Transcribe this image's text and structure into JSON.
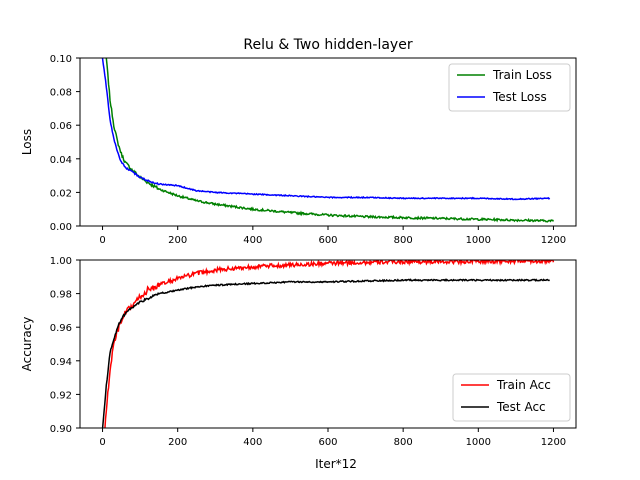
{
  "figure": {
    "title": "Relu & Two hidden-layer"
  },
  "chart_data": [
    {
      "type": "line",
      "title": "Relu & Two hidden-layer",
      "xlabel": "",
      "ylabel": "Loss",
      "xlim": [
        -60,
        1260
      ],
      "ylim": [
        0.0,
        0.1
      ],
      "xticks": [
        0,
        200,
        400,
        600,
        800,
        1000,
        1200
      ],
      "yticks": [
        0.0,
        0.02,
        0.04,
        0.06,
        0.08,
        0.1
      ],
      "ytick_labels": [
        "0.00",
        "0.02",
        "0.04",
        "0.06",
        "0.08",
        "0.10"
      ],
      "legend_position": "top-right",
      "grid": false,
      "series": [
        {
          "name": "Train Loss",
          "color": "#008000",
          "noise": 0.0006,
          "x": [
            0,
            10,
            20,
            30,
            40,
            50,
            60,
            80,
            100,
            120,
            150,
            200,
            250,
            300,
            400,
            500,
            600,
            700,
            800,
            900,
            1000,
            1100,
            1200
          ],
          "y": [
            0.13,
            0.1,
            0.075,
            0.06,
            0.05,
            0.043,
            0.038,
            0.033,
            0.029,
            0.026,
            0.022,
            0.018,
            0.015,
            0.013,
            0.01,
            0.008,
            0.0065,
            0.0055,
            0.005,
            0.0045,
            0.004,
            0.0035,
            0.003
          ]
        },
        {
          "name": "Test Loss",
          "color": "#0000ff",
          "noise": 0.0003,
          "x": [
            0,
            10,
            20,
            30,
            40,
            50,
            60,
            80,
            100,
            120,
            150,
            200,
            250,
            300,
            400,
            500,
            600,
            700,
            800,
            900,
            1000,
            1100,
            1190
          ],
          "y": [
            0.1,
            0.083,
            0.063,
            0.052,
            0.044,
            0.038,
            0.035,
            0.032,
            0.029,
            0.027,
            0.025,
            0.024,
            0.021,
            0.02,
            0.019,
            0.018,
            0.017,
            0.017,
            0.0165,
            0.0165,
            0.0165,
            0.016,
            0.0165
          ]
        }
      ]
    },
    {
      "type": "line",
      "title": "",
      "xlabel": "Iter*12",
      "ylabel": "Accuracy",
      "xlim": [
        -60,
        1260
      ],
      "ylim": [
        0.9,
        1.0
      ],
      "xticks": [
        0,
        200,
        400,
        600,
        800,
        1000,
        1200
      ],
      "yticks": [
        0.9,
        0.92,
        0.94,
        0.96,
        0.98,
        1.0
      ],
      "ytick_labels": [
        "0.90",
        "0.92",
        "0.94",
        "0.96",
        "0.98",
        "1.00"
      ],
      "legend_position": "bottom-right",
      "grid": false,
      "series": [
        {
          "name": "Train Acc",
          "color": "#ff0000",
          "noise": 0.0012,
          "x": [
            0,
            10,
            20,
            30,
            40,
            50,
            60,
            80,
            100,
            120,
            150,
            200,
            250,
            300,
            400,
            500,
            600,
            700,
            800,
            900,
            1000,
            1100,
            1200
          ],
          "y": [
            0.88,
            0.91,
            0.935,
            0.95,
            0.958,
            0.963,
            0.968,
            0.973,
            0.978,
            0.982,
            0.985,
            0.989,
            0.992,
            0.994,
            0.996,
            0.997,
            0.998,
            0.9985,
            0.999,
            0.999,
            0.9992,
            0.9993,
            0.9995
          ]
        },
        {
          "name": "Test Acc",
          "color": "#000000",
          "noise": 0.0004,
          "x": [
            0,
            10,
            20,
            30,
            40,
            50,
            60,
            80,
            100,
            120,
            150,
            200,
            250,
            300,
            400,
            500,
            600,
            700,
            800,
            900,
            1000,
            1100,
            1190
          ],
          "y": [
            0.9,
            0.925,
            0.945,
            0.953,
            0.96,
            0.965,
            0.968,
            0.972,
            0.975,
            0.977,
            0.98,
            0.982,
            0.984,
            0.985,
            0.986,
            0.987,
            0.987,
            0.9875,
            0.988,
            0.988,
            0.988,
            0.988,
            0.988
          ]
        }
      ]
    }
  ]
}
